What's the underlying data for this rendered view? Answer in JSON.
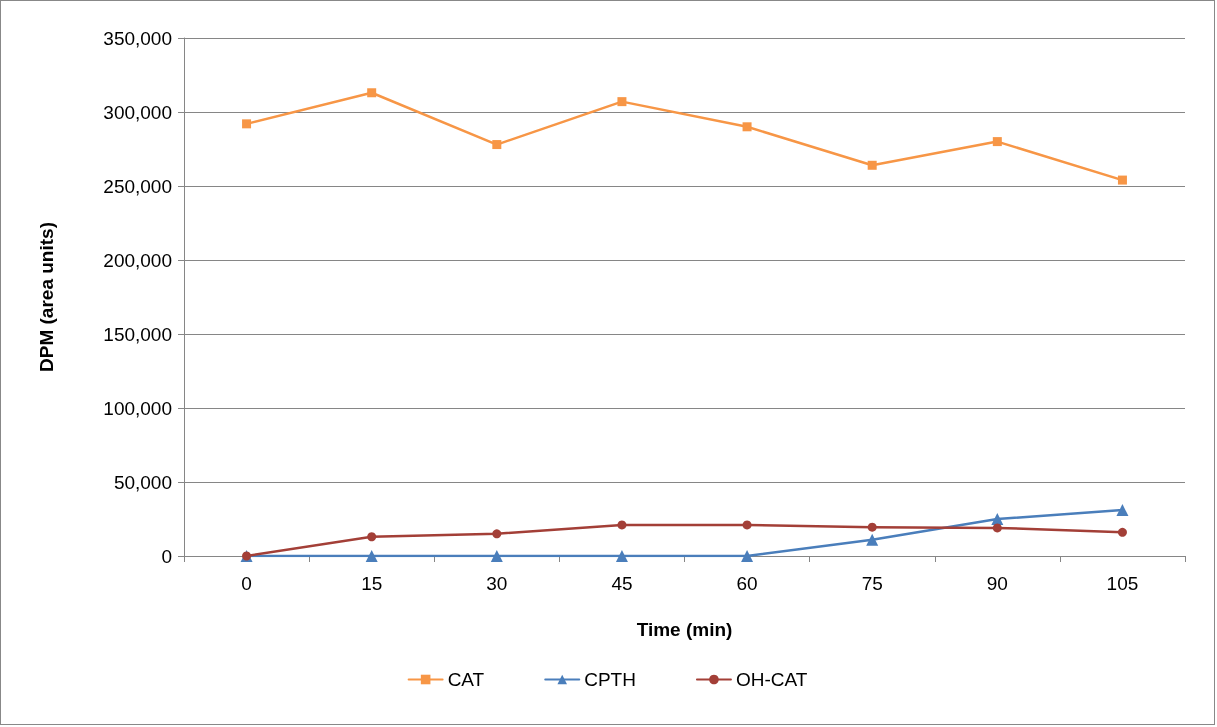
{
  "chart_data": {
    "type": "line",
    "xlabel": "Time (min)",
    "ylabel": "DPM (area units)",
    "categories": [
      "0",
      "15",
      "30",
      "45",
      "60",
      "75",
      "90",
      "105"
    ],
    "series": [
      {
        "name": "CAT",
        "color": "#f79646",
        "marker": "square",
        "values": [
          292000,
          313000,
          278000,
          307000,
          290000,
          264000,
          280000,
          254000
        ]
      },
      {
        "name": "CPTH",
        "color": "#4a7ebb",
        "marker": "triangle",
        "values": [
          0,
          0,
          0,
          0,
          0,
          11000,
          25000,
          31000
        ]
      },
      {
        "name": "OH-CAT",
        "color": "#a33f37",
        "marker": "circle",
        "values": [
          0,
          13000,
          15000,
          21000,
          21000,
          19500,
          19000,
          16000
        ]
      }
    ],
    "ylim": [
      0,
      350000
    ],
    "yticks": [
      0,
      {
        "value": 50000,
        "label": "50,000"
      },
      {
        "value": 100000,
        "label": "100,000"
      },
      {
        "value": 150000,
        "label": "150,000"
      },
      {
        "value": 200000,
        "label": "200,000"
      },
      {
        "value": 250000,
        "label": "250,000"
      },
      {
        "value": 300000,
        "label": "300,000"
      },
      {
        "value": 350000,
        "label": "350,000"
      }
    ],
    "grid": "y",
    "legend": "bottom",
    "line_style": "solid"
  }
}
